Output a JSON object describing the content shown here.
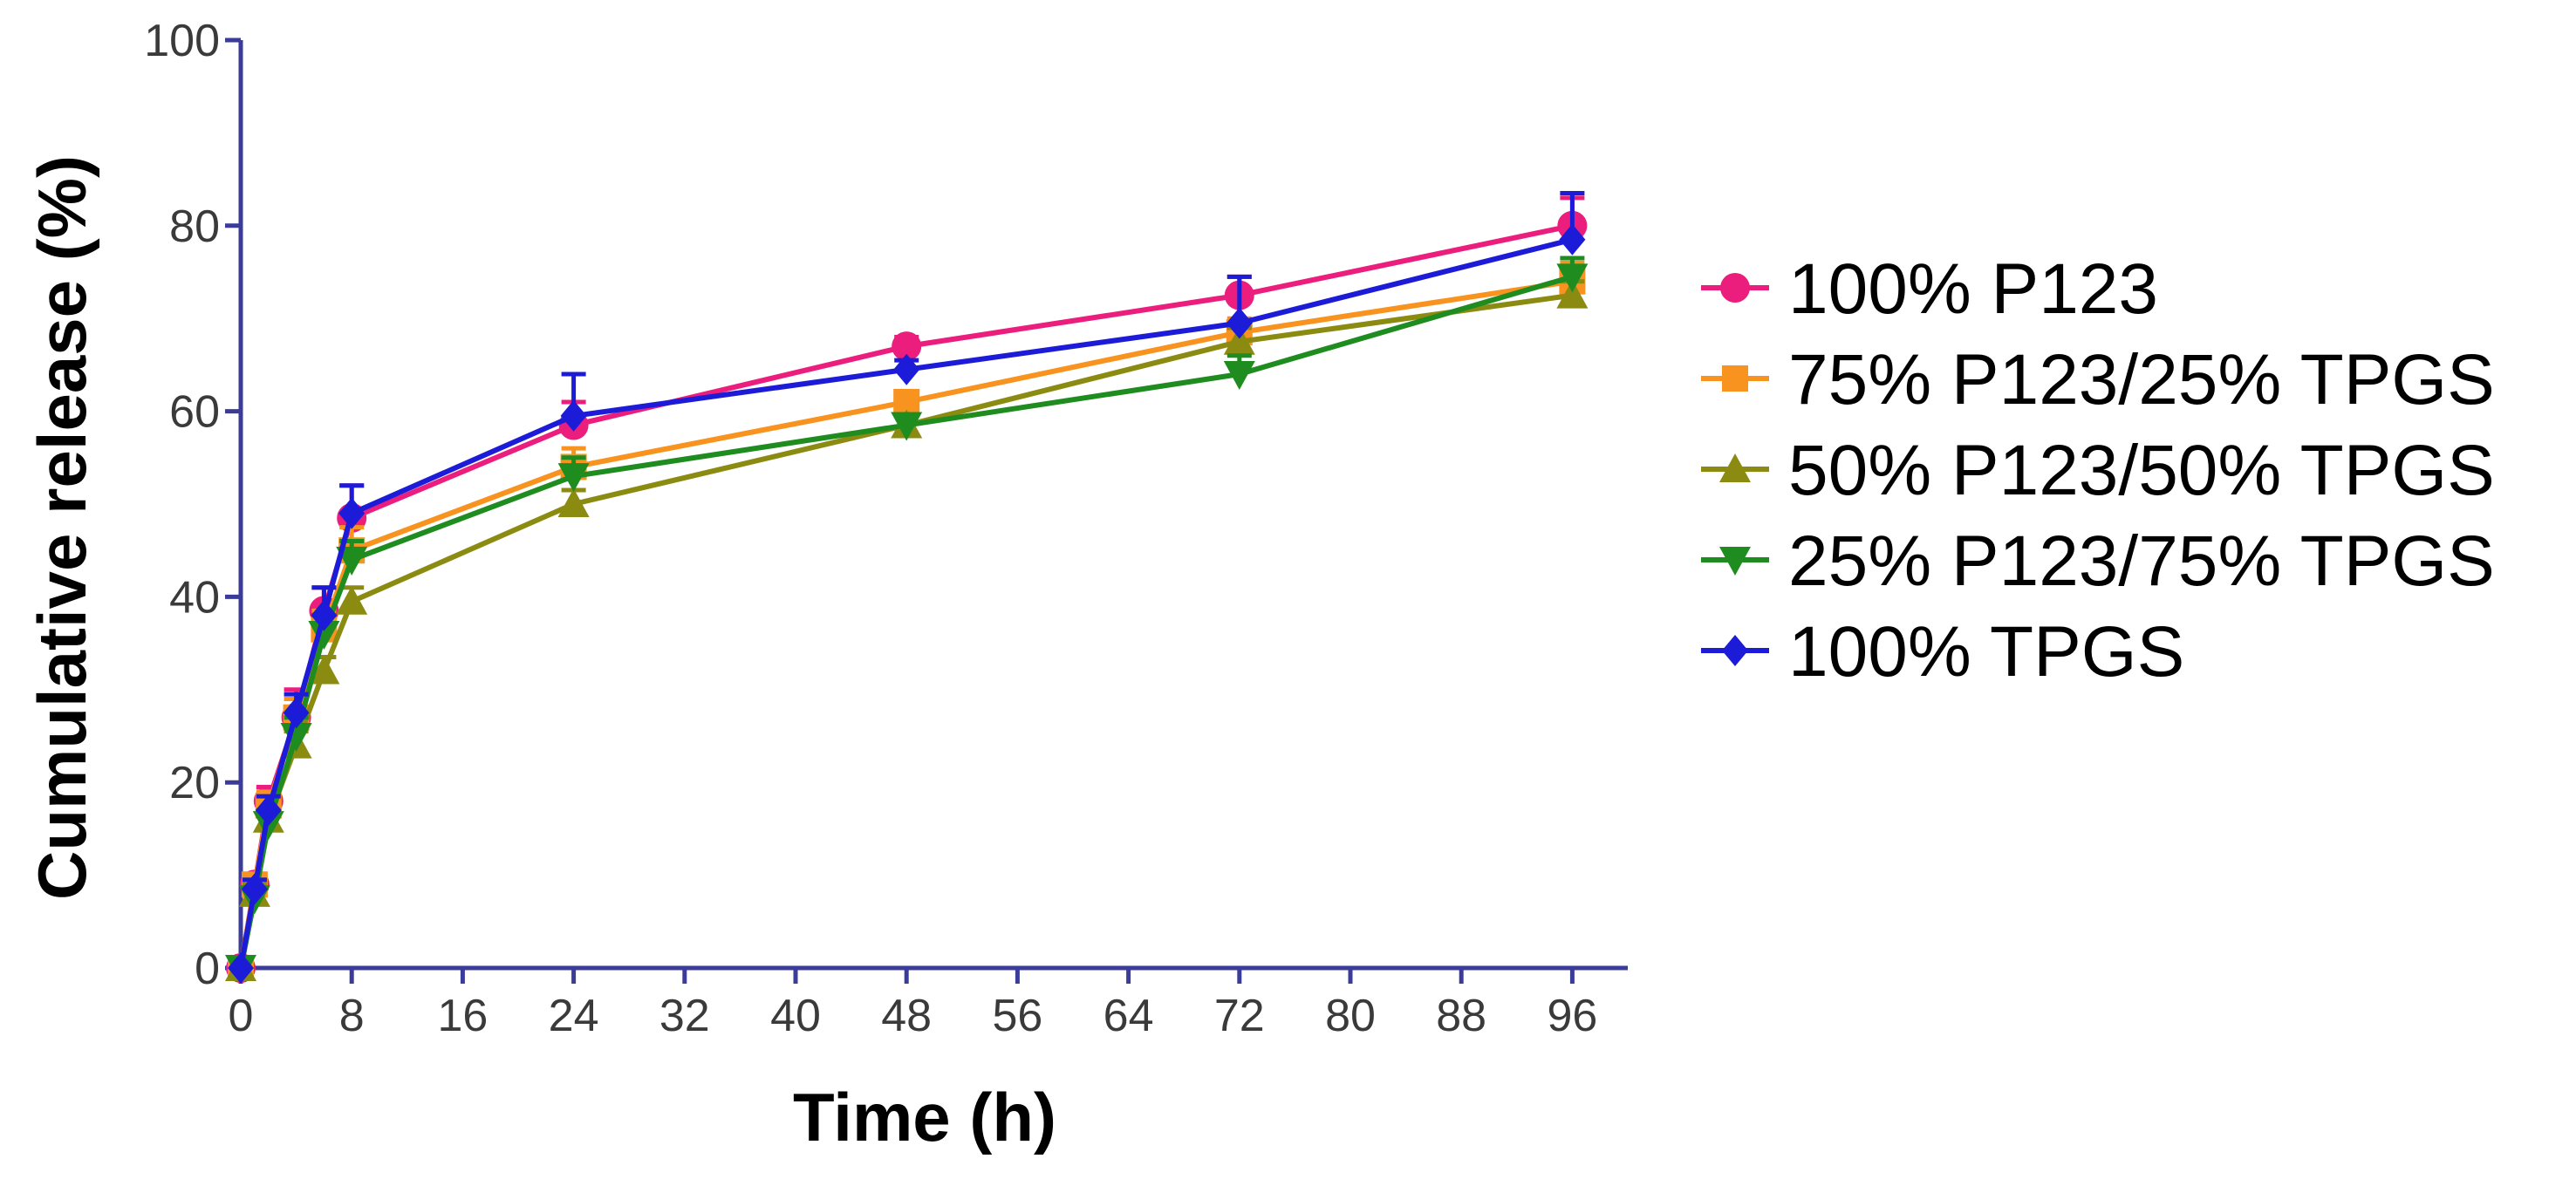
{
  "chart_data": {
    "type": "line",
    "title": "",
    "xlabel": "Time (h)",
    "ylabel": "Cumulative release (%)",
    "xlim": [
      0,
      100
    ],
    "ylim": [
      0,
      100
    ],
    "xticks": [
      0,
      8,
      16,
      24,
      32,
      40,
      48,
      56,
      64,
      72,
      80,
      88,
      96
    ],
    "yticks": [
      0,
      20,
      40,
      60,
      80,
      100
    ],
    "grid": false,
    "legend_position": "right",
    "axis_color": "#3b3b9a",
    "series": [
      {
        "name": "100% P123",
        "marker": "circle",
        "color": "#ec1e7d",
        "x": [
          0,
          1,
          2,
          4,
          6,
          8,
          24,
          48,
          72,
          96
        ],
        "values": [
          0,
          9,
          18,
          27,
          38.5,
          48.5,
          58.5,
          67,
          72.5,
          80
        ],
        "errors": [
          0,
          1,
          1.5,
          3,
          2.5,
          3.5,
          2.5,
          1,
          2,
          3
        ]
      },
      {
        "name": "75% P123/25% TPGS",
        "marker": "square",
        "color": "#f7931e",
        "x": [
          0,
          1,
          2,
          4,
          6,
          8,
          24,
          48,
          72,
          96
        ],
        "values": [
          0,
          9,
          17.5,
          27,
          36.5,
          45,
          54,
          61,
          68.5,
          74
        ],
        "errors": [
          0,
          1,
          1.5,
          2,
          2,
          2.5,
          2,
          1,
          1.5,
          2
        ]
      },
      {
        "name": "50% P123/50% TPGS",
        "marker": "triangle-up",
        "color": "#8b8b12",
        "x": [
          0,
          1,
          2,
          4,
          6,
          8,
          24,
          48,
          72,
          96
        ],
        "values": [
          0,
          8,
          16,
          24,
          32,
          39.5,
          50,
          58.5,
          67.5,
          72.5
        ],
        "errors": [
          0,
          1,
          1,
          1.5,
          1.5,
          1.5,
          1.5,
          1,
          1.5,
          1.5
        ]
      },
      {
        "name": "25% P123/75% TPGS",
        "marker": "triangle-down",
        "color": "#1e8c1e",
        "x": [
          0,
          1,
          2,
          4,
          6,
          8,
          24,
          48,
          72,
          96
        ],
        "values": [
          0,
          7.5,
          15.5,
          25,
          36,
          44,
          53,
          58.5,
          64,
          74.5
        ],
        "errors": [
          0,
          2,
          1,
          2,
          2,
          2,
          2,
          1,
          2,
          2
        ]
      },
      {
        "name": "100% TPGS",
        "marker": "diamond",
        "color": "#1c1cd8",
        "x": [
          0,
          1,
          2,
          4,
          6,
          8,
          24,
          48,
          72,
          96
        ],
        "values": [
          0,
          8.5,
          17,
          27.5,
          38,
          49,
          59.5,
          64.5,
          69.5,
          78.5
        ],
        "errors": [
          0,
          1,
          1.5,
          2,
          3,
          3,
          4.5,
          1,
          5,
          5
        ]
      }
    ]
  }
}
